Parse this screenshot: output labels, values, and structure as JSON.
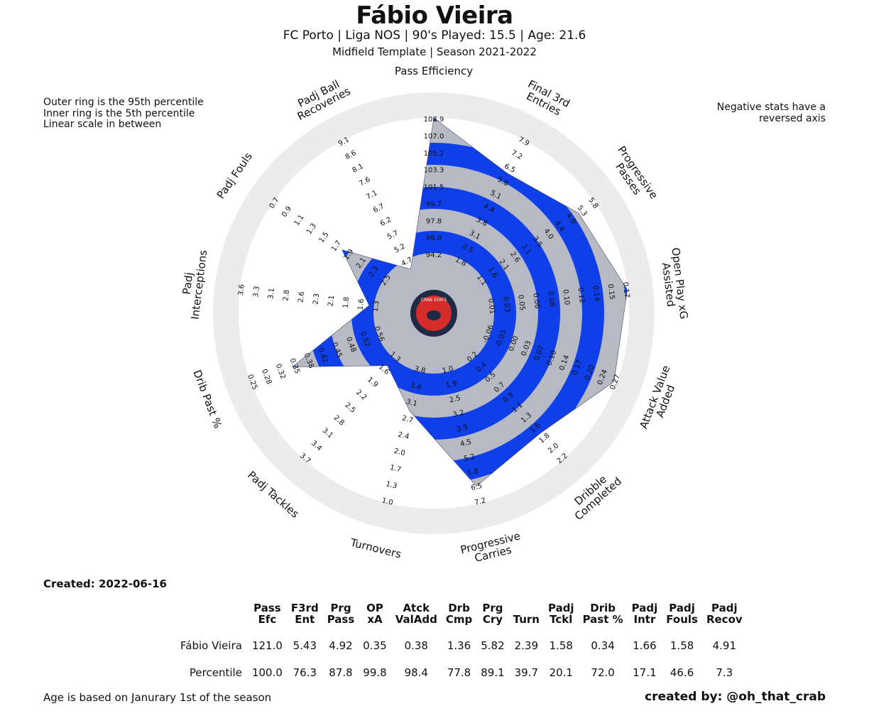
{
  "header": {
    "title": "Fábio Vieira",
    "subtitle": "FC Porto  | Liga NOS | 90's Played: 15.5 | Age: 21.6",
    "subtitle2": "Midfield Template | Season 2021-2022"
  },
  "notes": {
    "left": "Outer ring is the 95th percentile\nInner ring is the 5th percentile\nLinear scale in between",
    "right": "Negative stats have a\nreversed axis"
  },
  "footer": {
    "created": "Created: 2022-06-16",
    "age_note": "Age is based on Janurary 1st of the season",
    "credit": "created by: @oh_that_crab"
  },
  "logo": {
    "text": "CRAB STATS"
  },
  "colors": {
    "ring_blue": "#0f3fe8",
    "ring_grey": "#b7b9c4",
    "outer_ring": "#ececec",
    "logo_red": "#d52b2b",
    "logo_dark": "#1f2a44"
  },
  "chart_data": {
    "type": "radar",
    "axes": [
      {
        "label": "Pass Efficiency",
        "ticks": [
          "94.2",
          "96.0",
          "97.8",
          "99.7",
          "101.5",
          "103.3",
          "105.2",
          "107.0",
          "108.9"
        ],
        "reversed": false
      },
      {
        "label": "Final 3rd\nEntries",
        "ticks": [
          "1.8",
          "2.5",
          "3.1",
          "3.8",
          "4.4",
          "5.1",
          "5.8",
          "6.5",
          "7.2",
          "7.9"
        ],
        "reversed": false
      },
      {
        "label": "Progressive\nPasses",
        "ticks": [
          "1.1",
          "1.6",
          "2.1",
          "2.6",
          "3.1",
          "3.5",
          "4.0",
          "4.4",
          "4.9",
          "5.3",
          "5.8"
        ],
        "reversed": false
      },
      {
        "label": "Open Play xG\nAssisted",
        "ticks": [
          "0.01",
          "0.03",
          "0.05",
          "0.06",
          "0.08",
          "0.10",
          "0.12",
          "0.14",
          "0.15",
          "0.17"
        ],
        "reversed": false
      },
      {
        "label": "Attack Value\nAdded",
        "ticks": [
          "-0.06",
          "-0.03",
          "0.00",
          "0.03",
          "0.07",
          "0.10",
          "0.14",
          "0.17",
          "0.20",
          "0.24",
          "0.27"
        ],
        "reversed": false
      },
      {
        "label": "Dribble\nCompleted",
        "ticks": [
          "0.2",
          "0.4",
          "0.5",
          "0.7",
          "0.9",
          "1.1",
          "1.3",
          "1.6",
          "1.8",
          "2.0",
          "2.2"
        ],
        "reversed": false
      },
      {
        "label": "Progressive\nCarries",
        "ticks": [
          "1.0",
          "1.9",
          "2.5",
          "3.2",
          "3.9",
          "4.5",
          "5.2",
          "5.8",
          "6.5",
          "7.2"
        ],
        "reversed": false
      },
      {
        "label": "Turnovers",
        "ticks": [
          "3.8",
          "3.4",
          "3.1",
          "2.7",
          "2.4",
          "2.0",
          "1.7",
          "1.3",
          "1.0"
        ],
        "reversed": true
      },
      {
        "label": "Padj Tackles",
        "ticks": [
          "1.3",
          "1.6",
          "1.9",
          "2.2",
          "2.5",
          "2.8",
          "3.1",
          "3.4",
          "3.7"
        ],
        "reversed": false
      },
      {
        "label": "Drib Past %",
        "ticks": [
          "0.56",
          "0.52",
          "0.48",
          "0.45",
          "0.42",
          "0.38",
          "0.35",
          "0.32",
          "0.28",
          "0.25"
        ],
        "reversed": true
      },
      {
        "label": "Padj\nInterceptions",
        "ticks": [
          "1.3",
          "1.6",
          "1.8",
          "2.1",
          "2.3",
          "2.6",
          "2.8",
          "3.1",
          "3.3",
          "3.6"
        ],
        "reversed": false
      },
      {
        "label": "Padj Fouls",
        "ticks": [
          "2.5",
          "2.3",
          "2.1",
          "1.9",
          "1.7",
          "1.5",
          "1.3",
          "1.1",
          "0.9",
          "0.7"
        ],
        "reversed": true
      },
      {
        "label": "Padj Ball\nRecoveries",
        "ticks": [
          "4.7",
          "5.2",
          "5.7",
          "6.2",
          "6.7",
          "7.1",
          "7.6",
          "8.1",
          "8.6",
          "9.1"
        ],
        "reversed": false
      }
    ],
    "percentiles": [
      100.0,
      76.3,
      87.8,
      99.8,
      98.4,
      77.8,
      89.1,
      39.7,
      20.1,
      72.0,
      17.1,
      46.6,
      7.3
    ]
  },
  "table": {
    "headers": [
      "Pass\nEfc",
      "F3rd\nEnt",
      "Prg\nPass",
      "OP\nxA",
      "Atck\nValAdd",
      "Drb\nCmp",
      "Prg\nCry",
      "Turn",
      "Padj\nTckl",
      "Drib\nPast %",
      "Padj\nIntr",
      "Padj\nFouls",
      "Padj\nRecov"
    ],
    "rows": [
      {
        "label": "Fábio Vieira",
        "values": [
          "121.0",
          "5.43",
          "4.92",
          "0.35",
          "0.38",
          "1.36",
          "5.82",
          "2.39",
          "1.58",
          "0.34",
          "1.66",
          "1.58",
          "4.91"
        ]
      },
      {
        "label": "Percentile",
        "values": [
          "100.0",
          "76.3",
          "87.8",
          "99.8",
          "98.4",
          "77.8",
          "89.1",
          "39.7",
          "20.1",
          "72.0",
          "17.1",
          "46.6",
          "7.3"
        ]
      }
    ]
  }
}
